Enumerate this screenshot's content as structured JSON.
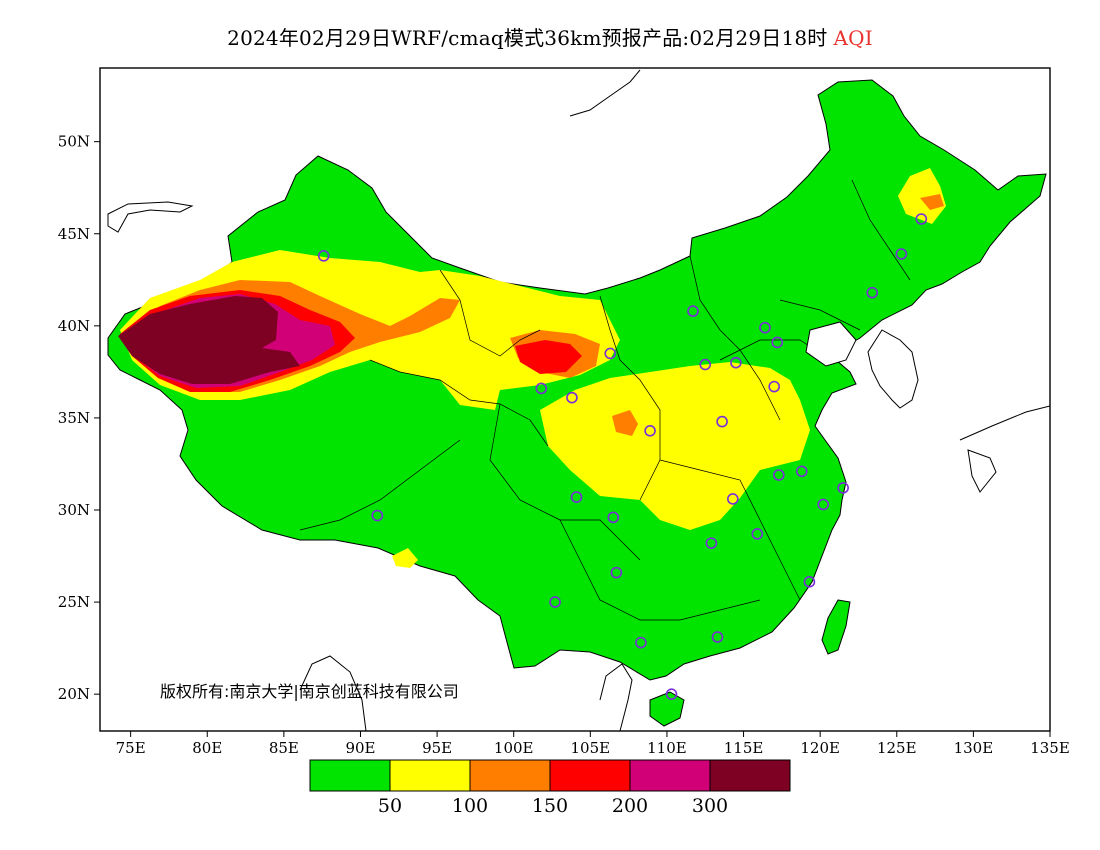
{
  "title": {
    "main": "2024年02月29日WRF/cmaq模式36km预报产品:02月29日18时",
    "variable": "AQI"
  },
  "map": {
    "lon_range": [
      73,
      135
    ],
    "lat_range": [
      18,
      54
    ],
    "lon_ticks": [
      {
        "value": 75,
        "label": "75E"
      },
      {
        "value": 80,
        "label": "80E"
      },
      {
        "value": 85,
        "label": "85E"
      },
      {
        "value": 90,
        "label": "90E"
      },
      {
        "value": 95,
        "label": "95E"
      },
      {
        "value": 100,
        "label": "100E"
      },
      {
        "value": 105,
        "label": "105E"
      },
      {
        "value": 110,
        "label": "110E"
      },
      {
        "value": 115,
        "label": "115E"
      },
      {
        "value": 120,
        "label": "120E"
      },
      {
        "value": 125,
        "label": "125E"
      },
      {
        "value": 130,
        "label": "130E"
      },
      {
        "value": 135,
        "label": "135E"
      }
    ],
    "lat_ticks": [
      {
        "value": 20,
        "label": "20N"
      },
      {
        "value": 25,
        "label": "25N"
      },
      {
        "value": 30,
        "label": "30N"
      },
      {
        "value": 35,
        "label": "35N"
      },
      {
        "value": 40,
        "label": "40N"
      },
      {
        "value": 45,
        "label": "45N"
      },
      {
        "value": 50,
        "label": "50N"
      }
    ],
    "copyright": "版权所有:南京大学|南京创蓝科技有限公司",
    "city_markers": [
      [
        87.6,
        43.8
      ],
      [
        91.1,
        29.7
      ],
      [
        101.8,
        36.6
      ],
      [
        103.8,
        36.1
      ],
      [
        106.3,
        38.5
      ],
      [
        104.1,
        30.7
      ],
      [
        106.5,
        29.6
      ],
      [
        102.7,
        25.0
      ],
      [
        106.7,
        26.6
      ],
      [
        108.3,
        22.8
      ],
      [
        110.3,
        20.0
      ],
      [
        113.3,
        23.1
      ],
      [
        111.7,
        40.8
      ],
      [
        112.5,
        37.9
      ],
      [
        114.5,
        38.0
      ],
      [
        116.4,
        39.9
      ],
      [
        117.2,
        39.1
      ],
      [
        117.0,
        36.7
      ],
      [
        113.6,
        34.8
      ],
      [
        108.9,
        34.3
      ],
      [
        114.3,
        30.6
      ],
      [
        112.9,
        28.2
      ],
      [
        115.9,
        28.7
      ],
      [
        117.3,
        31.9
      ],
      [
        118.8,
        32.1
      ],
      [
        120.2,
        30.3
      ],
      [
        121.5,
        31.2
      ],
      [
        119.3,
        26.1
      ],
      [
        123.4,
        41.8
      ],
      [
        125.3,
        43.9
      ],
      [
        126.6,
        45.8
      ]
    ]
  },
  "legend": {
    "colors": [
      "#00e400",
      "#ffff00",
      "#ff7e00",
      "#ff0000",
      "#d10077",
      "#7e0023"
    ],
    "labels": [
      "50",
      "100",
      "150",
      "200",
      "300"
    ]
  }
}
